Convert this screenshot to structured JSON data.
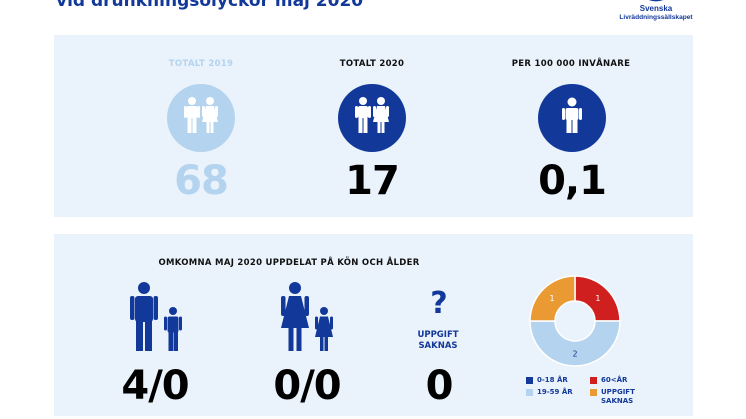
{
  "header": {
    "title": "vid drunkningsolyckor maj 2020",
    "logo_line1": "Svenska",
    "logo_line2": "Livräddningssällskapet"
  },
  "colors": {
    "navy": "#12389a",
    "light_blue": "#b4d3ee",
    "panel_bg": "#eaf2fb",
    "red": "#d01f1f",
    "orange": "#ea9a32"
  },
  "top_stats": [
    {
      "label": "TOTALT 2019",
      "value": "68",
      "icon": "male-female-icon"
    },
    {
      "label": "TOTALT 2020",
      "value": "17",
      "icon": "male-female-icon"
    },
    {
      "label": "PER 100 000 INVÅNARE",
      "value": "0,1",
      "icon": "person-icon"
    }
  ],
  "bottom": {
    "title": "OMKOMNA MAJ 2020 UPPDELAT PÅ KÖN OCH ÅLDER",
    "men": "4/0",
    "women": "0/0",
    "unknown_symbol": "?",
    "unknown_label_line1": "UPPGIFT",
    "unknown_label_line2": "SAKNAS",
    "unknown": "0"
  },
  "chart_data": {
    "type": "pie",
    "donut": true,
    "slices": [
      {
        "label": "60<ÅR",
        "value": 1,
        "color": "#d01f1f"
      },
      {
        "label": "19-59 ÅR",
        "value": 2,
        "color": "#b4d3ee"
      },
      {
        "label": "UPPGIFT SAKNAS",
        "value": 1,
        "color": "#ea9a32"
      },
      {
        "label": "0-18 ÅR",
        "value": 0,
        "color": "#12389a"
      }
    ],
    "legend": {
      "items": [
        {
          "label": "0-18 ÅR",
          "color": "#12389a"
        },
        {
          "label": "60<ÅR",
          "color": "#d01f1f"
        },
        {
          "label": "19-59 ÅR",
          "color": "#b4d3ee"
        },
        {
          "label": "UPPGIFT SAKNAS",
          "color": "#ea9a32"
        }
      ],
      "placement": "bottom"
    }
  }
}
